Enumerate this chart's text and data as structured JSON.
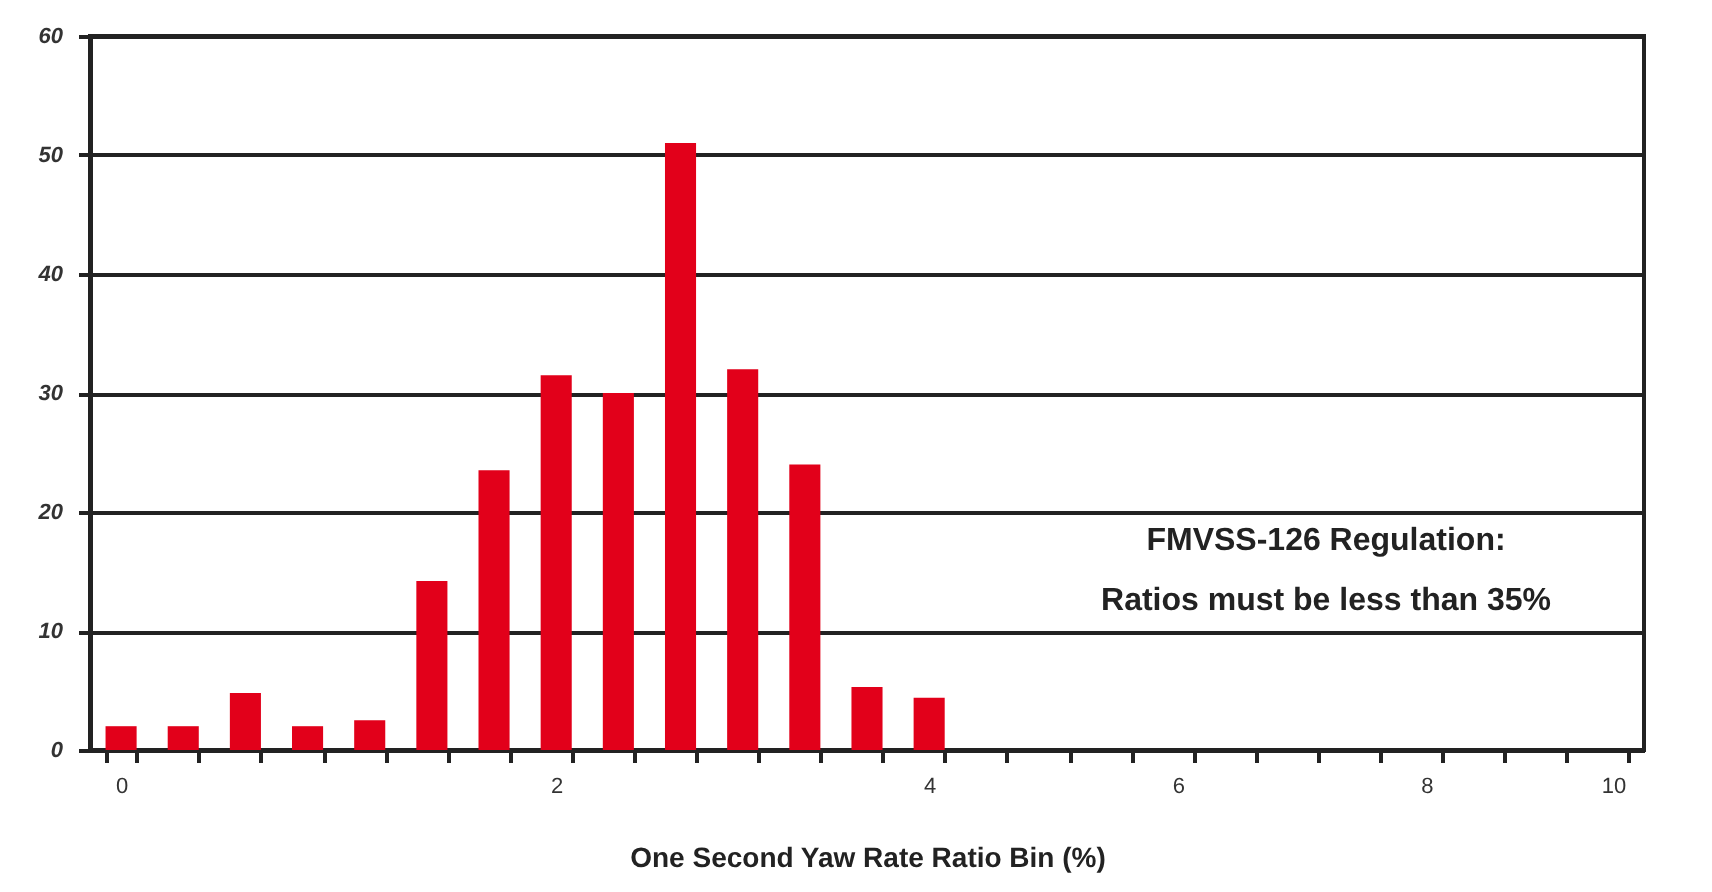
{
  "chart_data": {
    "type": "bar",
    "xlabel": "One Second Yaw Rate Ratio Bin (%)",
    "categories": [
      "0",
      null,
      null,
      null,
      null,
      null,
      null,
      "2",
      null,
      null,
      null,
      null,
      null,
      "4",
      null,
      null,
      null,
      "6",
      null,
      null,
      null,
      "8",
      null,
      null,
      "10"
    ],
    "values": [
      2,
      2,
      4.8,
      2,
      2.5,
      14.2,
      23.5,
      31.5,
      30,
      51,
      32,
      24,
      5.3,
      4.4,
      0,
      0,
      0,
      0,
      0,
      0,
      0,
      0,
      0,
      0,
      0
    ],
    "color": "#e2001a",
    "ylim": [
      0,
      60
    ],
    "yticks": [
      0,
      10,
      20,
      30,
      40,
      50,
      60
    ],
    "grid": "y",
    "annotations": [
      "FMVSS-126 Regulation:",
      "Ratios must be less than 35%"
    ]
  }
}
